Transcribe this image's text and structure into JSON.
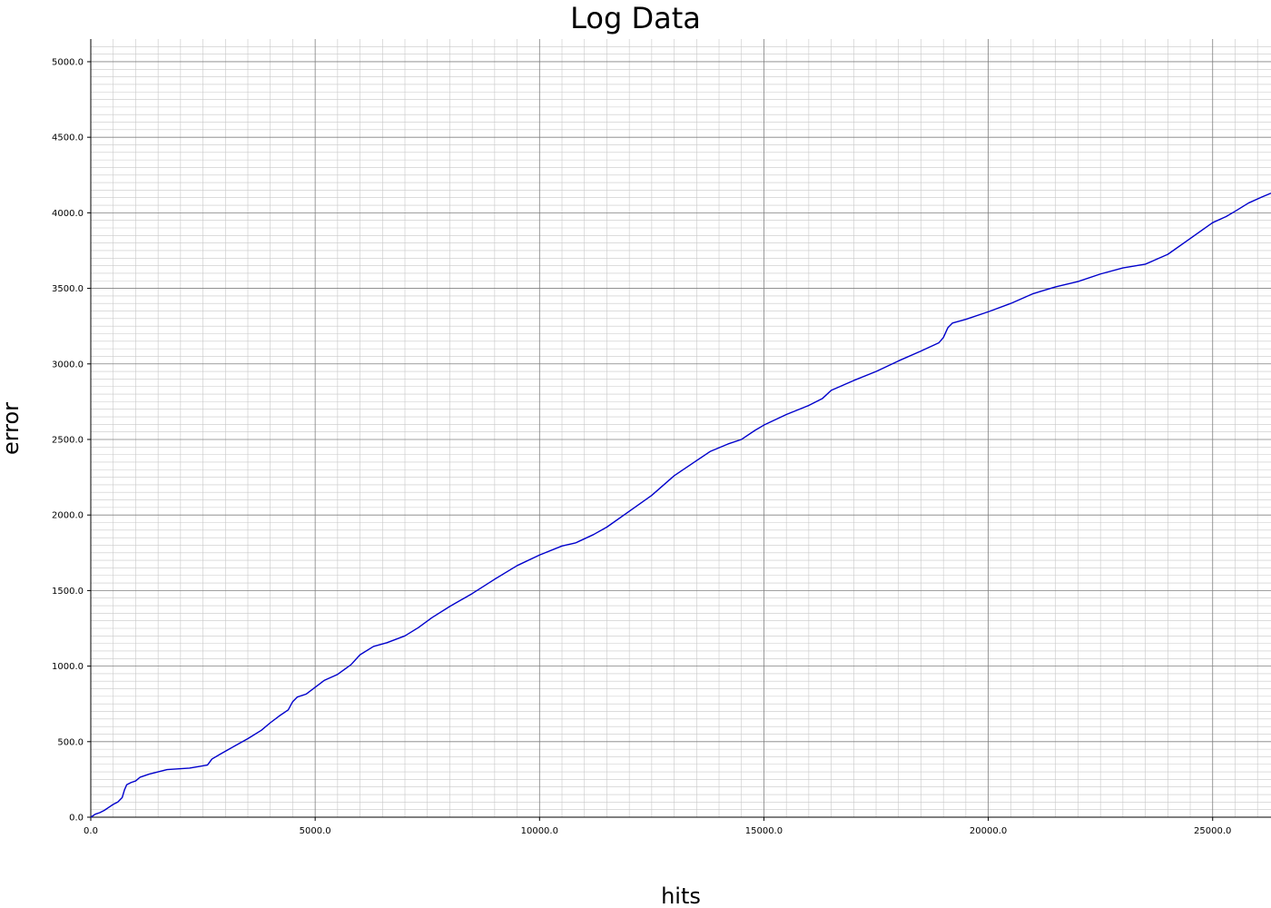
{
  "chart_data": {
    "type": "line",
    "title": "Log Data",
    "xlabel": "hits",
    "ylabel": "error",
    "xlim": [
      0,
      26300
    ],
    "ylim": [
      0,
      5150
    ],
    "x_ticks": [
      0,
      5000,
      10000,
      15000,
      20000,
      25000
    ],
    "x_tick_labels": [
      "0.0",
      "5000.0",
      "10000.0",
      "15000.0",
      "20000.0",
      "25000.0"
    ],
    "y_ticks": [
      0,
      500,
      1000,
      1500,
      2000,
      2500,
      3000,
      3500,
      4000,
      4500,
      5000
    ],
    "y_tick_labels": [
      "0.0",
      "500.0",
      "1000.0",
      "1500.0",
      "2000.0",
      "2500.0",
      "3000.0",
      "3500.0",
      "4000.0",
      "4500.0",
      "5000.0"
    ],
    "x_minor_step": 500,
    "y_minor_step": 50,
    "grid": true,
    "series": [
      {
        "color": "#0000cc",
        "x": [
          0,
          100,
          200,
          300,
          400,
          500,
          600,
          700,
          750,
          800,
          900,
          1000,
          1100,
          1300,
          1700,
          2200,
          2600,
          2700,
          2900,
          3200,
          3500,
          3800,
          4000,
          4200,
          4400,
          4500,
          4600,
          4800,
          5000,
          5200,
          5500,
          5800,
          6000,
          6300,
          6600,
          7000,
          7300,
          7600,
          8000,
          8500,
          9000,
          9500,
          10000,
          10500,
          10800,
          11200,
          11500,
          12000,
          12500,
          13000,
          13300,
          13800,
          14200,
          14500,
          14800,
          15000,
          15500,
          16000,
          16300,
          16500,
          17000,
          17500,
          18000,
          18500,
          18900,
          19000,
          19100,
          19200,
          19500,
          20000,
          20500,
          21000,
          21500,
          22000,
          22500,
          23000,
          23500,
          24000,
          24500,
          25000,
          25300,
          25500,
          25800,
          26100,
          26300
        ],
        "y": [
          0,
          20,
          30,
          45,
          65,
          85,
          100,
          130,
          180,
          215,
          230,
          240,
          265,
          285,
          315,
          325,
          345,
          385,
          420,
          470,
          520,
          575,
          625,
          670,
          710,
          765,
          795,
          815,
          860,
          905,
          945,
          1010,
          1075,
          1130,
          1155,
          1200,
          1255,
          1320,
          1395,
          1480,
          1575,
          1665,
          1735,
          1795,
          1815,
          1870,
          1920,
          2025,
          2130,
          2260,
          2320,
          2420,
          2470,
          2500,
          2560,
          2595,
          2665,
          2725,
          2770,
          2825,
          2890,
          2950,
          3020,
          3085,
          3140,
          3175,
          3240,
          3270,
          3295,
          3345,
          3400,
          3465,
          3510,
          3545,
          3595,
          3635,
          3660,
          3725,
          3830,
          3935,
          3975,
          4010,
          4065,
          4105,
          4130
        ]
      }
    ]
  }
}
